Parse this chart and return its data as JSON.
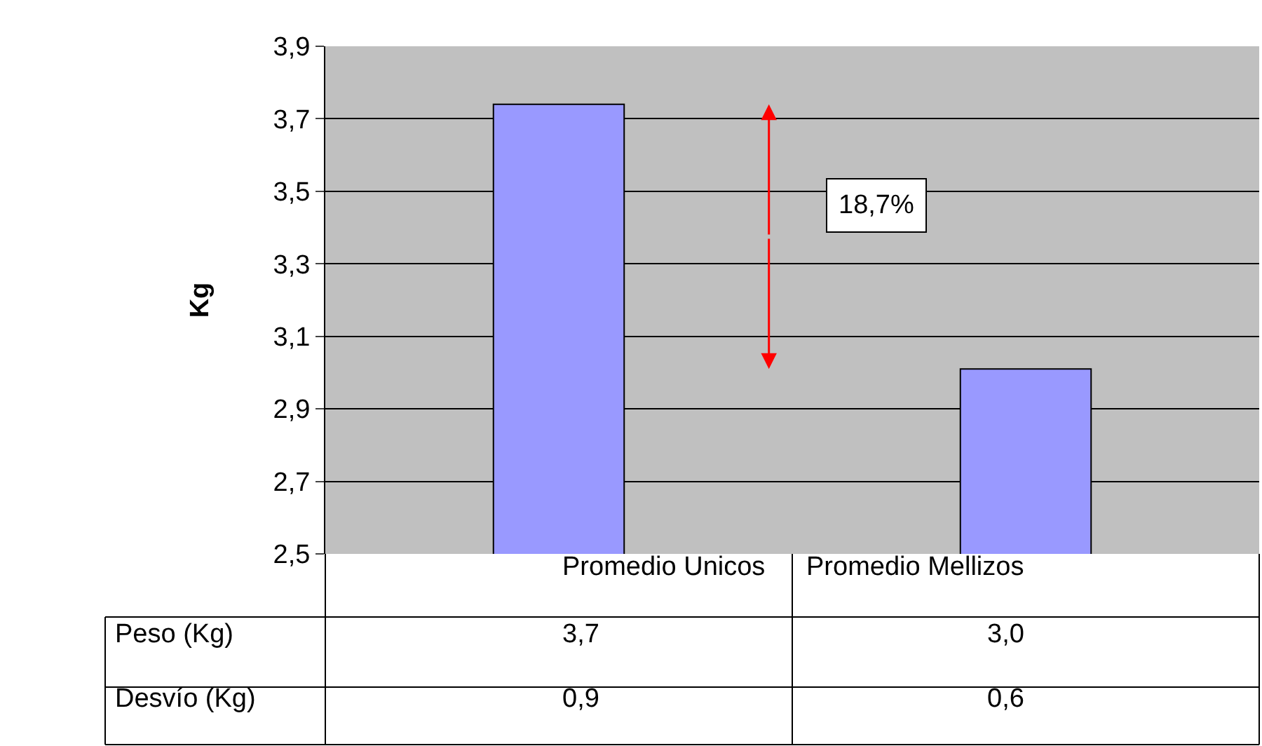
{
  "chart_data": {
    "type": "bar",
    "ylabel": "Kg",
    "categories": [
      "Promedio Unicos",
      "Promedio Mellizos"
    ],
    "series": [
      {
        "name": "Peso (Kg)",
        "color": "#9999ff",
        "values": [
          3.74,
          3.01
        ],
        "value_labels": [
          "3,7",
          "3,0"
        ]
      }
    ],
    "ylim": [
      2.5,
      3.9
    ],
    "yticks": [
      {
        "value": 2.5,
        "label": "2,5"
      },
      {
        "value": 2.7,
        "label": "2,7"
      },
      {
        "value": 2.9,
        "label": "2,9"
      },
      {
        "value": 3.1,
        "label": "3,1"
      },
      {
        "value": 3.3,
        "label": "3,3"
      },
      {
        "value": 3.5,
        "label": "3,5"
      },
      {
        "value": 3.7,
        "label": "3,7"
      },
      {
        "value": 3.9,
        "label": "3,9"
      }
    ],
    "grid": "y",
    "legend": false,
    "annotations": [
      "18,7%",
      "Desvío (Kg)",
      "0,9",
      "0,6"
    ]
  }
}
